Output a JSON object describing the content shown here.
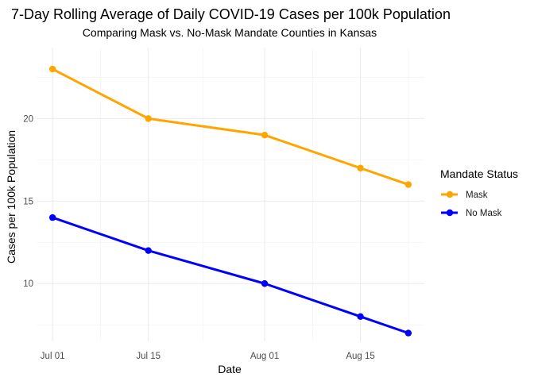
{
  "chart_data": {
    "type": "line",
    "title": "7-Day Rolling Average of Daily COVID-19 Cases per 100k Population",
    "subtitle": "Comparing Mask vs. No-Mask Mandate Counties in Kansas",
    "xlabel": "Date",
    "ylabel": "Cases per 100k Population",
    "x_ticks": [
      "Jul 01",
      "Jul 15",
      "Aug 01",
      "Aug 15"
    ],
    "y_ticks": [
      10,
      15,
      20
    ],
    "ylim": [
      6.5,
      24.3
    ],
    "x": [
      "2020-07-01",
      "2020-07-15",
      "2020-08-01",
      "2020-08-15",
      "2020-08-22"
    ],
    "series": [
      {
        "name": "Mask",
        "color": "#FFA500",
        "values": [
          23,
          20,
          19,
          17,
          16
        ]
      },
      {
        "name": "No Mask",
        "color": "#0000FF",
        "values": [
          14,
          12,
          10,
          8,
          7
        ]
      }
    ],
    "legend": {
      "title": "Mandate Status",
      "placement": "right"
    },
    "grid": true
  }
}
